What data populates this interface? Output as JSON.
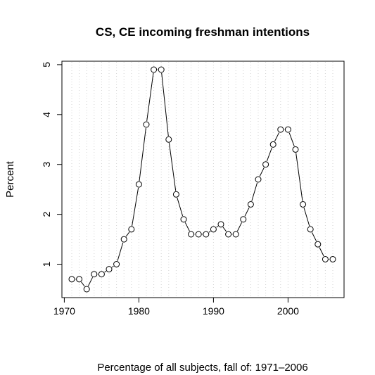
{
  "chart_data": {
    "type": "line",
    "title": "CS, CE incoming freshman intentions",
    "xlabel": "Percentage of all subjects, fall of: 1971–2006",
    "ylabel": "Percent",
    "xlim": [
      1971,
      2006
    ],
    "ylim": [
      0.5,
      4.9
    ],
    "x_ticks": [
      1970,
      1980,
      1990,
      2000
    ],
    "y_ticks": [
      1,
      2,
      3,
      4,
      5
    ],
    "grid": "vertical dotted at each year",
    "markers": "open circles",
    "x": [
      1971,
      1972,
      1973,
      1974,
      1975,
      1976,
      1977,
      1978,
      1979,
      1980,
      1981,
      1982,
      1983,
      1984,
      1985,
      1986,
      1987,
      1988,
      1989,
      1990,
      1991,
      1992,
      1993,
      1994,
      1995,
      1996,
      1997,
      1998,
      1999,
      2000,
      2001,
      2002,
      2003,
      2004,
      2005,
      2006
    ],
    "values": [
      0.7,
      0.7,
      0.5,
      0.8,
      0.8,
      0.9,
      1.0,
      1.5,
      1.7,
      2.6,
      3.8,
      4.9,
      4.9,
      3.5,
      2.4,
      1.9,
      1.6,
      1.6,
      1.6,
      1.7,
      1.8,
      1.6,
      1.6,
      1.9,
      2.2,
      2.7,
      3.0,
      3.4,
      3.7,
      3.7,
      3.3,
      2.2,
      1.7,
      1.4,
      1.1,
      1.1
    ]
  }
}
